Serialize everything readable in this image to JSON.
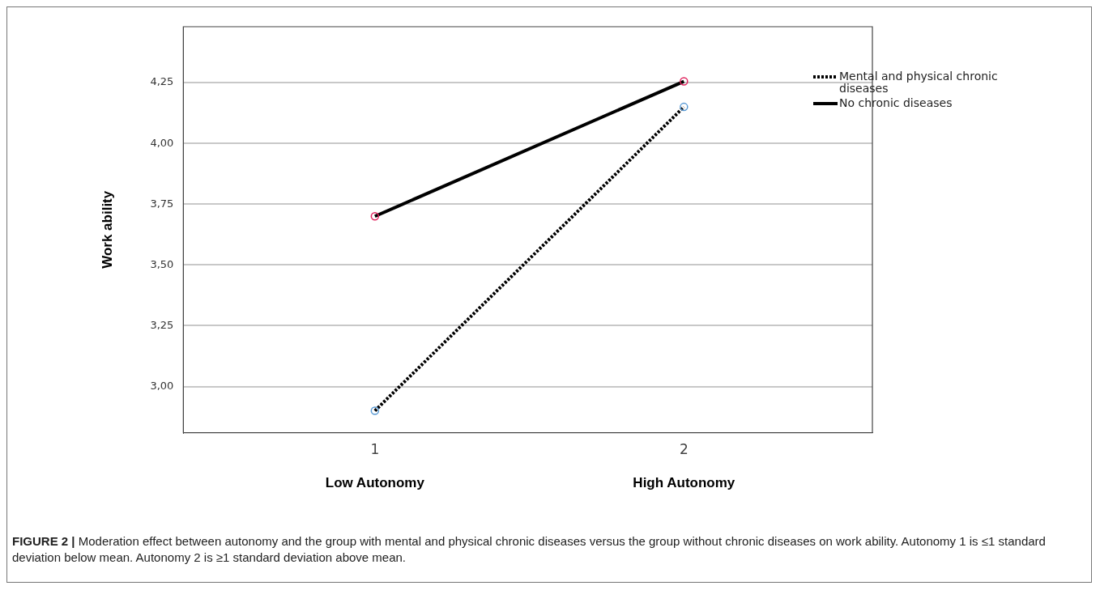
{
  "chart_data": {
    "type": "line",
    "ylabel": "Work ability",
    "xlim": [
      0.38,
      2.61
    ],
    "xticks": [
      1,
      2
    ],
    "ylim": [
      2.81,
      4.48
    ],
    "yticks": [
      {
        "value": 3,
        "label": "3,00"
      },
      {
        "value": 3.25,
        "label": "3,25"
      },
      {
        "value": 3.5,
        "label": "3,50"
      },
      {
        "value": 3.75,
        "label": "3,75"
      },
      {
        "value": 4,
        "label": "4,00"
      },
      {
        "value": 4.25,
        "label": "4,25"
      }
    ],
    "x": [
      1,
      2
    ],
    "grid": "y",
    "legend": "right",
    "marker": "circle",
    "series": [
      {
        "name": "Mental and physical chronic diseases",
        "color": "#000000",
        "colors": [
          "#5b9bd5",
          "#5b9bd5"
        ],
        "line_style": "dotted",
        "values": [
          2.9,
          4.15
        ]
      },
      {
        "name": "No chronic diseases",
        "color": "#000000",
        "colors": [
          "#e0245e",
          "#e0245e"
        ],
        "line_style": "solid",
        "values": [
          3.7,
          4.255
        ]
      }
    ],
    "annotations": [
      "Low Autonomy",
      "High Autonomy",
      "FIGURE 2 | Moderation effect between autonomy and the group with mental and physical chronic diseases versus the group without chronic diseases on work ability. Autonomy 1 is ≤1 standard deviation below mean. Autonomy 2 is ≥1 standard deviation above mean."
    ]
  }
}
